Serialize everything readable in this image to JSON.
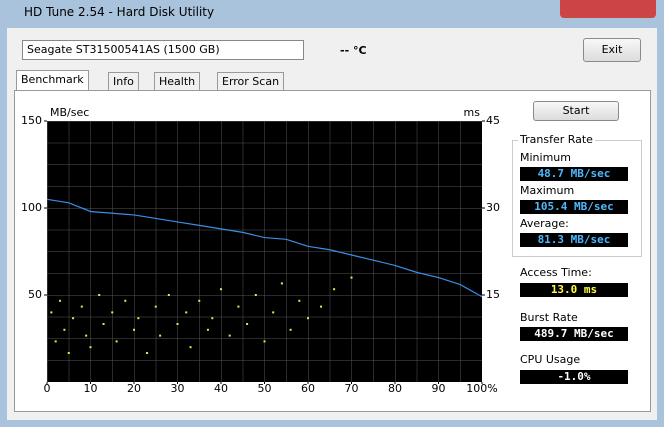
{
  "window": {
    "title": "HD Tune 2.54 - Hard Disk Utility"
  },
  "toolbar": {
    "drive": "Seagate ST31500541AS (1500 GB)",
    "temperature": "-- °C",
    "exit": "Exit"
  },
  "tabs": [
    "Benchmark",
    "Info",
    "Health",
    "Error Scan"
  ],
  "chart_data": {
    "type": "line",
    "y_label": "MB/sec",
    "y2_label": "ms",
    "xlim": [
      0,
      100
    ],
    "xticks": [
      0,
      10,
      20,
      30,
      40,
      50,
      60,
      70,
      80,
      90,
      {
        "value": 100,
        "label": "100%"
      }
    ],
    "ylim": [
      0,
      150
    ],
    "yticks": [
      50,
      100,
      150
    ],
    "y2lim": [
      0,
      45
    ],
    "y2ticks": [
      15,
      30,
      45
    ],
    "series": [
      {
        "type": "line",
        "color": "#3a8ee6",
        "x": [
          0,
          5,
          10,
          15,
          20,
          25,
          30,
          35,
          40,
          45,
          50,
          55,
          60,
          65,
          70,
          75,
          80,
          85,
          90,
          95,
          100
        ],
        "values": [
          105,
          103,
          98,
          97,
          96,
          94,
          92,
          90,
          88,
          86,
          83,
          82,
          78,
          76,
          73,
          70,
          67,
          63,
          60,
          56,
          49
        ]
      },
      {
        "type": "scatter",
        "axis": "y2",
        "color": "#e8e84a",
        "x": [
          1,
          2,
          3,
          4,
          5,
          6,
          8,
          9,
          10,
          12,
          13,
          15,
          16,
          18,
          20,
          21,
          23,
          25,
          26,
          28,
          30,
          32,
          33,
          35,
          37,
          38,
          40,
          42,
          44,
          46,
          48,
          50,
          52,
          54,
          56,
          58,
          60,
          63,
          66,
          70
        ],
        "values": [
          12,
          7,
          14,
          9,
          5,
          11,
          13,
          8,
          6,
          15,
          10,
          12,
          7,
          14,
          9,
          11,
          5,
          13,
          8,
          15,
          10,
          12,
          6,
          14,
          9,
          11,
          16,
          8,
          13,
          10,
          15,
          7,
          12,
          17,
          9,
          14,
          11,
          13,
          16,
          18
        ]
      }
    ]
  },
  "results": {
    "start": "Start",
    "transfer_rate": "Transfer Rate",
    "minimum_label": "Minimum",
    "minimum": "48.7 MB/sec",
    "maximum_label": "Maximum",
    "maximum": "105.4 MB/sec",
    "average_label": "Average:",
    "average": "81.3 MB/sec",
    "access_time_label": "Access Time:",
    "access_time": "13.0 ms",
    "burst_rate_label": "Burst Rate",
    "burst_rate": "489.7 MB/sec",
    "cpu_usage_label": "CPU Usage",
    "cpu_usage": "-1.0%"
  }
}
